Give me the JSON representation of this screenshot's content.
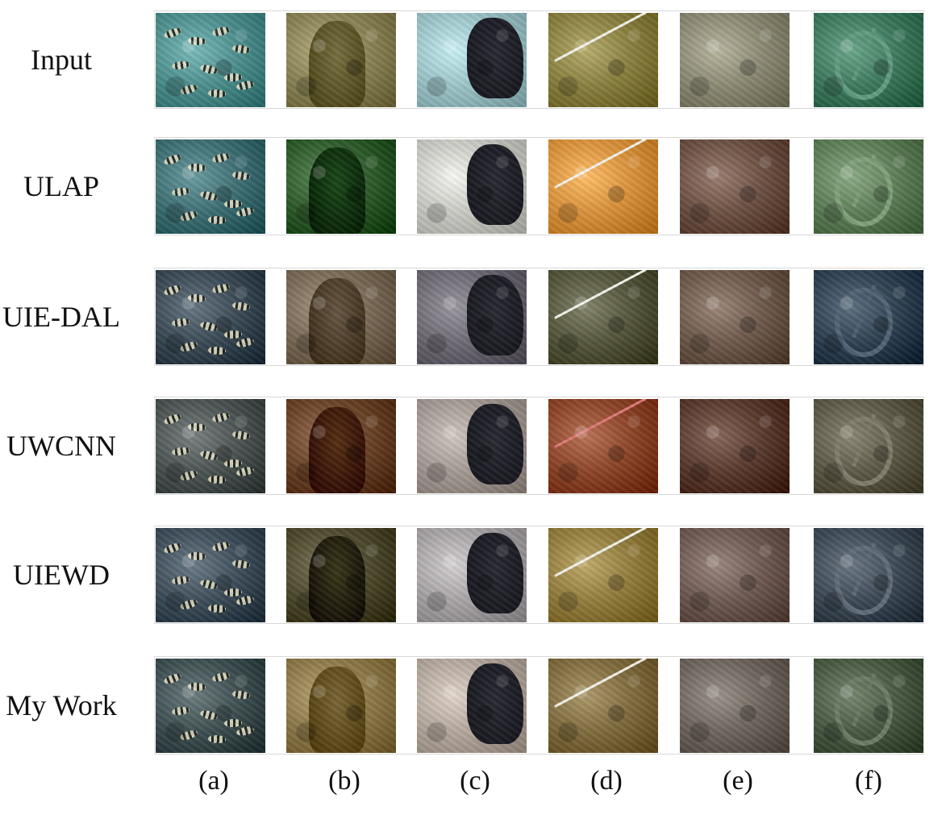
{
  "rows": [
    {
      "label": "Input",
      "tones": {
        "a": "#4d8f8e",
        "b": "#8a8356",
        "c": "#9dc4c8",
        "d": "#8a8040",
        "e": "#8c8a74",
        "f": "#3f7a5e"
      }
    },
    {
      "label": "ULAP",
      "tones": {
        "a": "#3e6f74",
        "b": "#2f5c2c",
        "c": "#c9cac4",
        "d": "#d9923c",
        "e": "#6d5144",
        "f": "#5e7e58"
      }
    },
    {
      "label": "UIE-DAL",
      "tones": {
        "a": "#3a4a55",
        "b": "#7a6a57",
        "c": "#6e6a74",
        "d": "#55563c",
        "e": "#6e5a4c",
        "f": "#2f4252"
      }
    },
    {
      "label": "UWCNN",
      "tones": {
        "a": "#4c5453",
        "b": "#6a4327",
        "c": "#a49a94",
        "d": "#8d4528",
        "e": "#5a3a2e",
        "f": "#5e5a48"
      }
    },
    {
      "label": "UIEWD",
      "tones": {
        "a": "#3e4e5a",
        "b": "#4e4a2e",
        "c": "#a8a4a6",
        "d": "#937d3e",
        "e": "#6e5a52",
        "f": "#3e4a56"
      }
    },
    {
      "label": "My Work",
      "tones": {
        "a": "#3f5052",
        "b": "#8e7a4a",
        "c": "#b4a89e",
        "d": "#806c3e",
        "e": "#6e665e",
        "f": "#4a5a44"
      }
    }
  ],
  "columns": [
    "(a)",
    "(b)",
    "(c)",
    "(d)",
    "(e)",
    "(f)"
  ]
}
